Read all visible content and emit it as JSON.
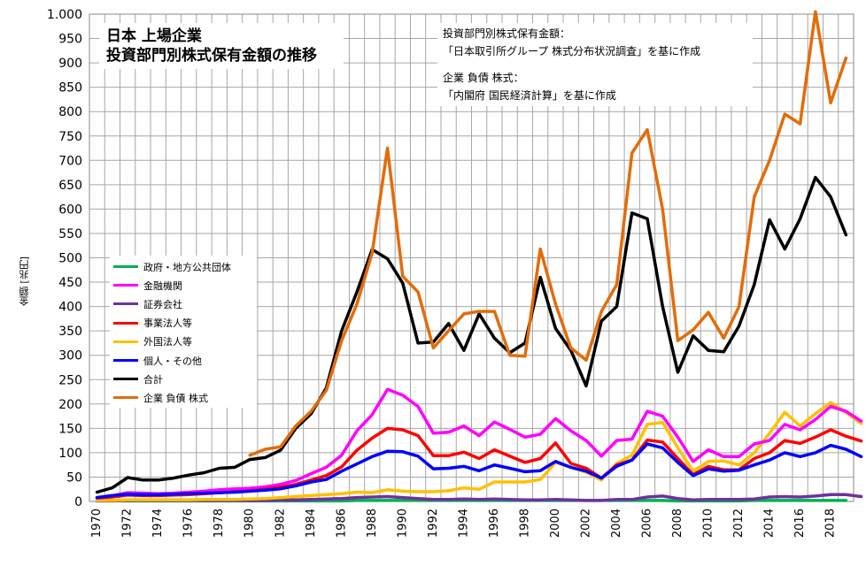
{
  "title_lines": [
    "日本 上場企業",
    "投資部門別株式保有金額の推移"
  ],
  "source_lines": [
    "投資部門別株式保有金額：",
    "「日本取引所グループ 株式分布状況調査」を基に作成",
    "",
    "企業 負債 株式：",
    "「内閣府 国民経済計算」を基に作成"
  ],
  "chart_data": {
    "type": "line",
    "ylabel": "金額 [兆円]",
    "xlabel": "",
    "ylim": [
      0,
      1000
    ],
    "xlim": [
      1970,
      2019
    ],
    "yticks": [
      0,
      50,
      100,
      150,
      200,
      250,
      300,
      350,
      400,
      450,
      500,
      550,
      600,
      650,
      700,
      750,
      800,
      850,
      900,
      950,
      1000
    ],
    "ytick_labels": [
      "0",
      "50",
      "100",
      "150",
      "200",
      "250",
      "300",
      "350",
      "400",
      "450",
      "500",
      "550",
      "600",
      "650",
      "700",
      "750",
      "800",
      "850",
      "900",
      "950",
      "1.000"
    ],
    "xticks": [
      1970,
      1972,
      1974,
      1976,
      1978,
      1980,
      1982,
      1984,
      1986,
      1988,
      1990,
      1992,
      1994,
      1996,
      1998,
      2000,
      2002,
      2004,
      2006,
      2008,
      2010,
      2012,
      2014,
      2016,
      2018
    ],
    "grid": true,
    "legend_position": "left-middle",
    "series": [
      {
        "name": "政府・地方公共団体",
        "color": "#00b050",
        "x_start": 1970,
        "values": [
          1,
          1,
          1,
          1,
          1,
          1,
          1,
          1,
          1,
          1,
          1,
          1,
          1,
          1,
          1,
          1,
          1,
          2,
          2,
          2,
          2,
          2,
          2,
          2,
          2,
          2,
          2,
          2,
          2,
          2,
          2,
          2,
          2,
          2,
          2,
          2,
          2,
          2,
          1,
          1,
          1,
          1,
          1,
          2,
          2,
          2,
          2,
          2,
          2,
          2
        ]
      },
      {
        "name": "金融機関",
        "color": "#ff00ff",
        "x_start": 1970,
        "values": [
          8,
          12,
          18,
          17,
          16,
          17,
          19,
          21,
          24,
          26,
          27,
          30,
          35,
          43,
          57,
          70,
          95,
          145,
          178,
          230,
          218,
          195,
          140,
          142,
          155,
          135,
          163,
          148,
          132,
          138,
          170,
          145,
          125,
          93,
          125,
          128,
          185,
          175,
          132,
          82,
          106,
          92,
          92,
          118,
          125,
          158,
          147,
          168,
          195,
          185,
          165
        ]
      },
      {
        "name": "証券会社",
        "color": "#7030a0",
        "x_start": 1970,
        "values": [
          1,
          1,
          2,
          2,
          2,
          2,
          2,
          2,
          2,
          2,
          2,
          2,
          3,
          3,
          4,
          5,
          6,
          8,
          9,
          10,
          8,
          6,
          4,
          4,
          5,
          4,
          5,
          4,
          3,
          3,
          4,
          3,
          2,
          2,
          4,
          4,
          9,
          11,
          6,
          3,
          4,
          4,
          4,
          5,
          9,
          10,
          9,
          11,
          14,
          14,
          10
        ]
      },
      {
        "name": "事業法人等",
        "color": "#ff0000",
        "x_start": 1970,
        "values": [
          7,
          9,
          13,
          12,
          12,
          13,
          14,
          16,
          18,
          20,
          22,
          25,
          29,
          35,
          44,
          53,
          71,
          105,
          130,
          150,
          147,
          135,
          94,
          94,
          101,
          88,
          106,
          93,
          80,
          88,
          120,
          78,
          68,
          48,
          75,
          85,
          126,
          122,
          88,
          55,
          72,
          65,
          65,
          88,
          100,
          125,
          119,
          132,
          147,
          134,
          124
        ]
      },
      {
        "name": "外国法人等",
        "color": "#ffc000",
        "x_start": 1970,
        "values": [
          2,
          2,
          3,
          3,
          3,
          3,
          3,
          4,
          4,
          4,
          5,
          6,
          8,
          10,
          12,
          14,
          16,
          19,
          18,
          24,
          21,
          20,
          20,
          22,
          28,
          25,
          40,
          40,
          40,
          45,
          80,
          70,
          60,
          44,
          78,
          95,
          158,
          162,
          110,
          62,
          82,
          83,
          75,
          100,
          140,
          183,
          155,
          180,
          203,
          183,
          160
        ]
      },
      {
        "name": "個人・その他",
        "color": "#0000ff",
        "x_start": 1970,
        "values": [
          8,
          12,
          15,
          14,
          14,
          15,
          16,
          17,
          18,
          19,
          21,
          23,
          26,
          32,
          40,
          45,
          62,
          77,
          92,
          103,
          102,
          93,
          67,
          68,
          72,
          63,
          75,
          68,
          61,
          63,
          82,
          70,
          62,
          48,
          72,
          85,
          118,
          110,
          80,
          53,
          67,
          62,
          64,
          75,
          85,
          100,
          92,
          100,
          115,
          107,
          92
        ]
      },
      {
        "name": "合計",
        "color": "#000000",
        "x_start": 1970,
        "values": [
          19,
          28,
          49,
          44,
          44,
          48,
          54,
          59,
          68,
          70,
          86,
          90,
          105,
          150,
          180,
          233,
          350,
          430,
          517,
          498,
          448,
          325,
          327,
          365,
          310,
          385,
          335,
          305,
          325,
          460,
          355,
          310,
          237,
          370,
          400,
          592,
          580,
          400,
          265,
          340,
          310,
          307,
          360,
          445,
          578,
          518,
          580,
          665,
          625,
          547
        ]
      },
      {
        "name": "企業 負債 株式",
        "color": "#e36c09",
        "x_start": 1980,
        "values": [
          95,
          107,
          112,
          155,
          185,
          228,
          330,
          405,
          510,
          725,
          462,
          430,
          315,
          350,
          385,
          390,
          390,
          300,
          298,
          518,
          405,
          315,
          290,
          390,
          445,
          715,
          763,
          600,
          330,
          352,
          388,
          335,
          400,
          625,
          700,
          795,
          775,
          1005,
          818,
          910
        ]
      }
    ]
  }
}
